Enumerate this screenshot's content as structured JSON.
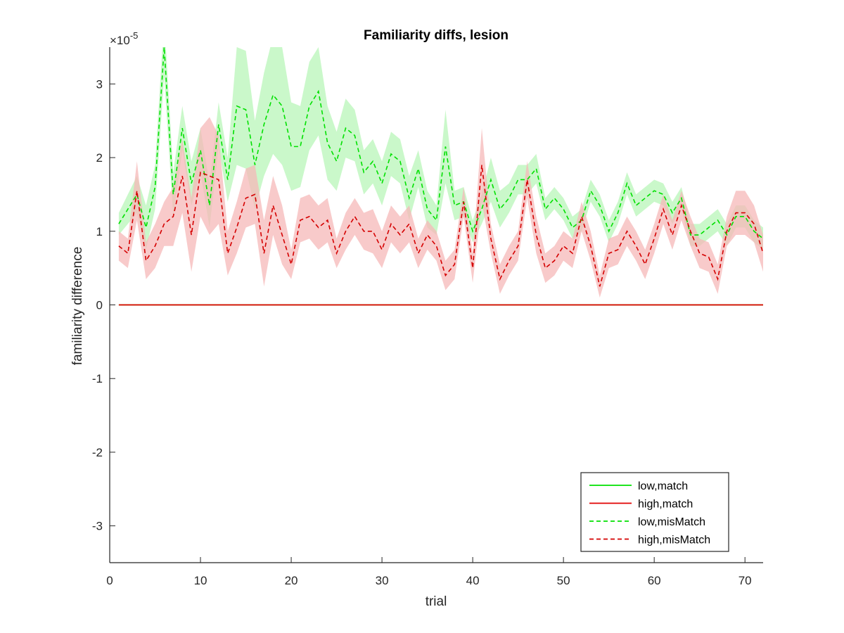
{
  "chart_data": {
    "type": "line",
    "title": "Familiarity diffs, lesion",
    "xlabel": "trial",
    "ylabel": "familiarity difference",
    "y_exponent_label": "×10",
    "y_exponent_power": "-5",
    "xlim": [
      0,
      72
    ],
    "ylim": [
      -3.5,
      3.5
    ],
    "xticks": [
      0,
      10,
      20,
      30,
      40,
      50,
      60,
      70
    ],
    "xtick_labels": [
      "0",
      "10",
      "20",
      "30",
      "40",
      "50",
      "60",
      "70"
    ],
    "yticks": [
      -3,
      -2,
      -1,
      0,
      1,
      2,
      3
    ],
    "ytick_labels": [
      "-3",
      "-2",
      "-1",
      "0",
      "1",
      "2",
      "3"
    ],
    "grid": false,
    "legend_position": "bottom-right",
    "x": [
      1,
      2,
      3,
      4,
      5,
      6,
      7,
      8,
      9,
      10,
      11,
      12,
      13,
      14,
      15,
      16,
      17,
      18,
      19,
      20,
      21,
      22,
      23,
      24,
      25,
      26,
      27,
      28,
      29,
      30,
      31,
      32,
      33,
      34,
      35,
      36,
      37,
      38,
      39,
      40,
      41,
      42,
      43,
      44,
      45,
      46,
      47,
      48,
      49,
      50,
      51,
      52,
      53,
      54,
      55,
      56,
      57,
      58,
      59,
      60,
      61,
      62,
      63,
      64,
      65,
      66,
      67,
      68,
      69,
      70,
      71,
      72
    ],
    "series": [
      {
        "name": "low,match",
        "color": "#00e000",
        "dash": "solid",
        "values": [
          0,
          0,
          0,
          0,
          0,
          0,
          0,
          0,
          0,
          0,
          0,
          0,
          0,
          0,
          0,
          0,
          0,
          0,
          0,
          0,
          0,
          0,
          0,
          0,
          0,
          0,
          0,
          0,
          0,
          0,
          0,
          0,
          0,
          0,
          0,
          0,
          0,
          0,
          0,
          0,
          0,
          0,
          0,
          0,
          0,
          0,
          0,
          0,
          0,
          0,
          0,
          0,
          0,
          0,
          0,
          0,
          0,
          0,
          0,
          0,
          0,
          0,
          0,
          0,
          0,
          0,
          0,
          0,
          0,
          0,
          0,
          0
        ]
      },
      {
        "name": "high,match",
        "color": "#e00000",
        "dash": "solid",
        "values": [
          0,
          0,
          0,
          0,
          0,
          0,
          0,
          0,
          0,
          0,
          0,
          0,
          0,
          0,
          0,
          0,
          0,
          0,
          0,
          0,
          0,
          0,
          0,
          0,
          0,
          0,
          0,
          0,
          0,
          0,
          0,
          0,
          0,
          0,
          0,
          0,
          0,
          0,
          0,
          0,
          0,
          0,
          0,
          0,
          0,
          0,
          0,
          0,
          0,
          0,
          0,
          0,
          0,
          0,
          0,
          0,
          0,
          0,
          0,
          0,
          0,
          0,
          0,
          0,
          0,
          0,
          0,
          0,
          0,
          0,
          0,
          0
        ]
      },
      {
        "name": "low,misMatch",
        "color": "#00e000",
        "band_color": "#b8f5b8",
        "dash": "dashed",
        "values": [
          1.1,
          1.3,
          1.5,
          1.05,
          1.6,
          3.5,
          1.5,
          2.4,
          1.65,
          2.1,
          1.35,
          2.45,
          1.7,
          2.7,
          2.65,
          1.9,
          2.45,
          2.85,
          2.7,
          2.15,
          2.15,
          2.7,
          2.9,
          2.2,
          1.95,
          2.4,
          2.3,
          1.8,
          1.95,
          1.65,
          2.05,
          1.95,
          1.45,
          1.85,
          1.3,
          1.15,
          2.15,
          1.35,
          1.4,
          1.0,
          1.3,
          1.7,
          1.3,
          1.45,
          1.7,
          1.7,
          1.85,
          1.3,
          1.45,
          1.3,
          1.05,
          1.15,
          1.55,
          1.35,
          1.0,
          1.25,
          1.65,
          1.35,
          1.45,
          1.55,
          1.5,
          1.25,
          1.45,
          0.95,
          0.95,
          1.05,
          1.15,
          0.95,
          1.2,
          1.2,
          1.0,
          0.9
        ],
        "band": [
          0.15,
          0.2,
          0.25,
          0.3,
          0.3,
          0.4,
          0.3,
          0.3,
          0.3,
          0.3,
          0.3,
          0.3,
          0.3,
          0.8,
          0.8,
          0.6,
          0.7,
          0.8,
          0.8,
          0.6,
          0.55,
          0.6,
          0.6,
          0.5,
          0.4,
          0.4,
          0.35,
          0.3,
          0.3,
          0.3,
          0.3,
          0.3,
          0.3,
          0.25,
          0.25,
          0.2,
          0.5,
          0.2,
          0.2,
          0.15,
          0.2,
          0.3,
          0.25,
          0.2,
          0.2,
          0.2,
          0.2,
          0.15,
          0.15,
          0.15,
          0.15,
          0.15,
          0.15,
          0.15,
          0.15,
          0.15,
          0.15,
          0.15,
          0.15,
          0.15,
          0.15,
          0.15,
          0.15,
          0.15,
          0.15,
          0.15,
          0.15,
          0.15,
          0.15,
          0.15,
          0.15,
          0.15
        ]
      },
      {
        "name": "high,misMatch",
        "color": "#d40000",
        "band_color": "#f5b8b8",
        "dash": "dashed",
        "values": [
          0.8,
          0.7,
          1.55,
          0.6,
          0.8,
          1.1,
          1.2,
          1.75,
          0.95,
          1.8,
          1.75,
          1.7,
          0.7,
          1.05,
          1.45,
          1.5,
          0.7,
          1.35,
          0.95,
          0.55,
          1.15,
          1.2,
          1.05,
          1.15,
          0.7,
          1.0,
          1.2,
          1.0,
          1.0,
          0.75,
          1.1,
          0.95,
          1.1,
          0.7,
          0.95,
          0.8,
          0.4,
          0.55,
          1.4,
          0.5,
          1.9,
          0.9,
          0.35,
          0.6,
          0.8,
          1.7,
          0.95,
          0.5,
          0.6,
          0.8,
          0.7,
          1.2,
          0.8,
          0.25,
          0.7,
          0.75,
          1.0,
          0.8,
          0.55,
          0.9,
          1.3,
          0.95,
          1.35,
          1.0,
          0.7,
          0.65,
          0.35,
          1.0,
          1.25,
          1.25,
          1.1,
          0.7
        ],
        "band": [
          0.2,
          0.2,
          0.4,
          0.25,
          0.3,
          0.3,
          0.4,
          0.5,
          0.5,
          0.6,
          0.8,
          0.6,
          0.3,
          0.35,
          0.4,
          0.4,
          0.45,
          0.4,
          0.4,
          0.2,
          0.3,
          0.3,
          0.3,
          0.3,
          0.2,
          0.25,
          0.25,
          0.25,
          0.3,
          0.25,
          0.25,
          0.25,
          0.25,
          0.2,
          0.2,
          0.2,
          0.2,
          0.2,
          0.2,
          0.2,
          0.5,
          0.2,
          0.2,
          0.2,
          0.2,
          0.25,
          0.25,
          0.2,
          0.2,
          0.2,
          0.2,
          0.2,
          0.2,
          0.15,
          0.2,
          0.2,
          0.2,
          0.2,
          0.2,
          0.2,
          0.2,
          0.2,
          0.2,
          0.2,
          0.2,
          0.2,
          0.2,
          0.2,
          0.3,
          0.3,
          0.25,
          0.25
        ]
      }
    ]
  }
}
